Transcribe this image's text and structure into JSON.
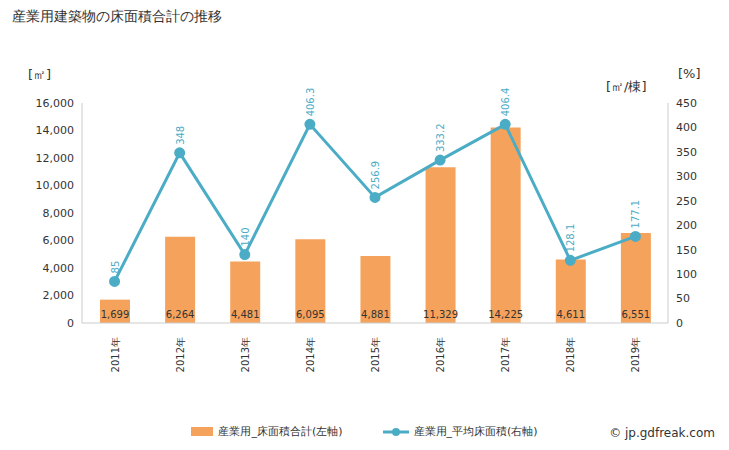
{
  "chart_data": {
    "type": "bar",
    "title": "産業用建築物の床面積合計の推移",
    "y_label": "[㎡]",
    "y2_label": "[㎡/棟]",
    "annotations": [
      "[%]",
      "© jp.gdfreak.com"
    ],
    "categories": [
      "2011年",
      "2012年",
      "2013年",
      "2014年",
      "2015年",
      "2016年",
      "2017年",
      "2018年",
      "2019年"
    ],
    "series": [
      {
        "name": "産業用_床面積合計(左軸)",
        "type": "bar",
        "color": "#f5a35c",
        "values": [
          1699,
          6264,
          4481,
          6095,
          4881,
          11329,
          14225,
          4611,
          6551
        ],
        "value_labels": [
          "1,699",
          "6,264",
          "4,481",
          "6,095",
          "4,881",
          "11,329",
          "14,225",
          "4,611",
          "6,551"
        ]
      },
      {
        "name": "産業用_平均床面積(右軸)",
        "type": "line",
        "axis": "y2",
        "color": "#4bacc6",
        "marker": "circle",
        "values": [
          85,
          348,
          140,
          406.3,
          256.9,
          333.2,
          406.4,
          128.1,
          177.1
        ]
      }
    ],
    "ylim": [
      0,
      16000
    ],
    "yticks": [
      0,
      {
        "value": 2000,
        "label": "2,000"
      },
      {
        "value": 4000,
        "label": "4,000"
      },
      {
        "value": 6000,
        "label": "6,000"
      },
      {
        "value": 8000,
        "label": "8,000"
      },
      {
        "value": 10000,
        "label": "10,000"
      },
      {
        "value": 12000,
        "label": "12,000"
      },
      {
        "value": 14000,
        "label": "14,000"
      },
      {
        "value": 16000,
        "label": "16,000"
      }
    ],
    "y2lim": [
      0,
      450
    ],
    "y2ticks": [
      0,
      50,
      100,
      150,
      200,
      250,
      300,
      350,
      400,
      450
    ],
    "data_labels": true,
    "grid": false,
    "legend": "bottom"
  }
}
